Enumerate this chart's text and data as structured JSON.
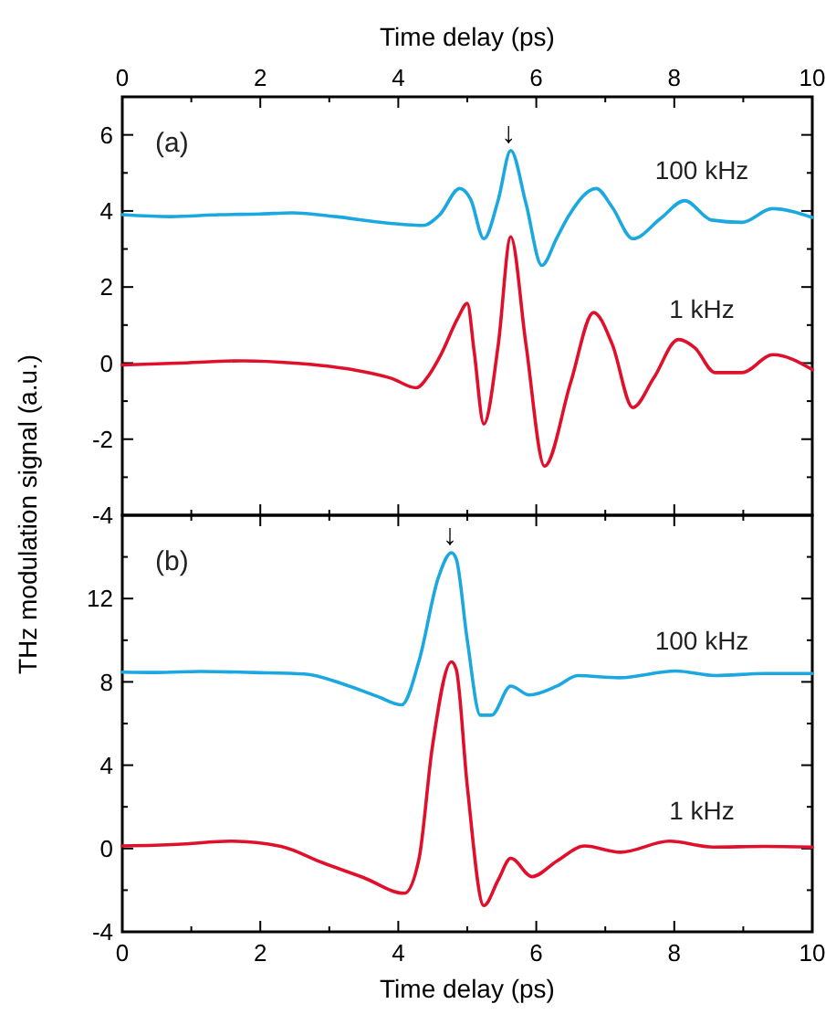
{
  "chart_data": [
    {
      "type": "line",
      "title": "(a)",
      "ylabel": "THz modulation signal (a.u.)",
      "xlabel": "Time delay (ps)",
      "xlim": [
        0,
        10
      ],
      "xticks": [
        0,
        {
          "value": 1,
          "label": null
        },
        2,
        {
          "value": 3,
          "label": null
        },
        4,
        {
          "value": 5,
          "label": null
        },
        6,
        {
          "value": 7,
          "label": null
        },
        8,
        {
          "value": 9,
          "label": null
        },
        10
      ],
      "ylim": [
        -4,
        7
      ],
      "yticks": [
        -4,
        {
          "value": -3,
          "label": null
        },
        -2,
        {
          "value": -1,
          "label": null
        },
        0,
        {
          "value": 1,
          "label": null
        },
        2,
        {
          "value": 3,
          "label": null
        },
        4,
        {
          "value": 5,
          "label": null
        },
        6
      ],
      "series": [
        {
          "name": "100 kHz",
          "color": "#1ba8e0",
          "x": [
            0,
            0.7,
            1.4,
            2.0,
            2.46,
            3.1,
            3.7,
            4.36,
            4.6,
            4.89,
            5.05,
            5.24,
            5.45,
            5.63,
            5.85,
            6.08,
            6.3,
            6.47,
            6.87,
            7.1,
            7.4,
            7.8,
            8.15,
            8.54,
            8.98,
            9.42,
            10
          ],
          "values": [
            3.9,
            3.85,
            3.9,
            3.92,
            3.95,
            3.85,
            3.71,
            3.62,
            3.9,
            4.59,
            4.3,
            3.27,
            4.3,
            5.59,
            4.2,
            2.57,
            3.3,
            3.87,
            4.59,
            4.1,
            3.27,
            3.8,
            4.27,
            3.76,
            3.7,
            4.06,
            3.83
          ]
        },
        {
          "name": "1 kHz",
          "color": "#e0102c",
          "x": [
            0,
            0.8,
            1.75,
            2.5,
            3.33,
            3.9,
            4.26,
            4.45,
            4.62,
            4.86,
            5.0,
            5.1,
            5.24,
            5.45,
            5.63,
            5.85,
            6.12,
            6.5,
            6.83,
            7.1,
            7.4,
            7.7,
            8.06,
            8.3,
            8.59,
            8.98,
            9.43,
            10
          ],
          "values": [
            -0.05,
            0.0,
            0.06,
            0.0,
            -0.17,
            -0.4,
            -0.65,
            -0.3,
            0.23,
            1.17,
            1.57,
            0.3,
            -1.6,
            0.5,
            3.32,
            0.5,
            -2.71,
            -0.5,
            1.33,
            0.5,
            -1.17,
            -0.4,
            0.62,
            0.4,
            -0.25,
            -0.25,
            0.22,
            -0.17
          ]
        }
      ],
      "annotations": [
        {
          "text": "↓",
          "x": 5.6,
          "y": 5.8
        }
      ]
    },
    {
      "type": "line",
      "title": "(b)",
      "xlabel": "Time delay (ps)",
      "xlim": [
        0,
        10
      ],
      "xticks": [
        0,
        {
          "value": 1,
          "label": null
        },
        2,
        {
          "value": 3,
          "label": null
        },
        4,
        {
          "value": 5,
          "label": null
        },
        6,
        {
          "value": 7,
          "label": null
        },
        8,
        {
          "value": 9,
          "label": null
        },
        10
      ],
      "ylim": [
        -4,
        16
      ],
      "yticks": [
        -4,
        {
          "value": -2,
          "label": null
        },
        0,
        {
          "value": 2,
          "label": null
        },
        4,
        {
          "value": 6,
          "label": null
        },
        8,
        {
          "value": 10,
          "label": null
        },
        12,
        {
          "value": 14,
          "label": null
        }
      ],
      "series": [
        {
          "name": "100 kHz",
          "color": "#1ba8e0",
          "x": [
            0,
            0.5,
            1.14,
            1.9,
            2.64,
            3.2,
            3.7,
            4.05,
            4.3,
            4.58,
            4.77,
            4.84,
            5.0,
            5.19,
            5.35,
            5.63,
            5.9,
            6.3,
            6.6,
            7.2,
            8.02,
            8.6,
            9.3,
            10
          ],
          "values": [
            8.47,
            8.45,
            8.5,
            8.45,
            8.38,
            7.9,
            7.3,
            6.9,
            9.0,
            13.0,
            14.2,
            13.9,
            10.0,
            6.4,
            6.4,
            7.8,
            7.37,
            7.8,
            8.3,
            8.2,
            8.52,
            8.3,
            8.4,
            8.4
          ]
        },
        {
          "name": "1 kHz",
          "color": "#e0102c",
          "x": [
            0,
            0.8,
            1.58,
            2.3,
            2.9,
            3.5,
            4.09,
            4.3,
            4.49,
            4.77,
            4.84,
            5.0,
            5.24,
            5.45,
            5.63,
            5.94,
            6.3,
            6.7,
            7.22,
            7.93,
            8.56,
            9.3,
            10
          ],
          "values": [
            0.12,
            0.2,
            0.35,
            0.1,
            -0.68,
            -1.4,
            -2.15,
            -0.5,
            4.78,
            8.96,
            8.6,
            3.0,
            -2.74,
            -1.5,
            -0.47,
            -1.35,
            -0.6,
            0.12,
            -0.18,
            0.35,
            0.07,
            0.1,
            0.07
          ]
        }
      ],
      "annotations": [
        {
          "text": "↓",
          "x": 4.75,
          "y": 14.6
        }
      ]
    }
  ]
}
